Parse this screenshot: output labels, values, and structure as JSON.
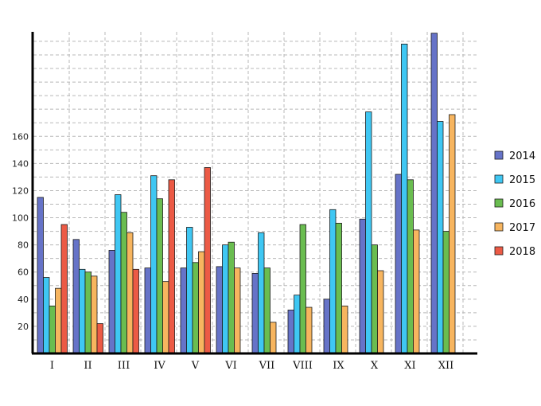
{
  "chart_data": {
    "type": "bar",
    "title": "",
    "xlabel": "",
    "ylabel": "",
    "categories": [
      "I",
      "II",
      "III",
      "IV",
      "V",
      "VI",
      "VII",
      "VIII",
      "IX",
      "X",
      "XI",
      "XII"
    ],
    "ylim": [
      0,
      237
    ],
    "yticks": [
      20,
      40,
      60,
      80,
      100,
      120,
      140,
      160
    ],
    "grid": true,
    "legend_position": "right",
    "series": [
      {
        "name": "2014",
        "color": "#6673c8",
        "values": [
          115,
          84,
          76,
          63,
          63,
          64,
          59,
          32,
          40,
          99,
          132,
          236
        ]
      },
      {
        "name": "2015",
        "color": "#3fc7f3",
        "values": [
          56,
          62,
          117,
          131,
          93,
          80,
          89,
          43,
          106,
          178,
          228,
          171
        ]
      },
      {
        "name": "2016",
        "color": "#6abd50",
        "values": [
          35,
          60,
          104,
          114,
          67,
          82,
          63,
          95,
          96,
          80,
          128,
          90
        ]
      },
      {
        "name": "2017",
        "color": "#f7b55f",
        "values": [
          48,
          57,
          89,
          53,
          75,
          63,
          23,
          34,
          35,
          61,
          91,
          176
        ]
      },
      {
        "name": "2018",
        "color": "#ec5a45",
        "values": [
          95,
          22,
          62,
          128,
          137,
          0,
          0,
          0,
          0,
          0,
          0,
          0
        ]
      }
    ]
  }
}
